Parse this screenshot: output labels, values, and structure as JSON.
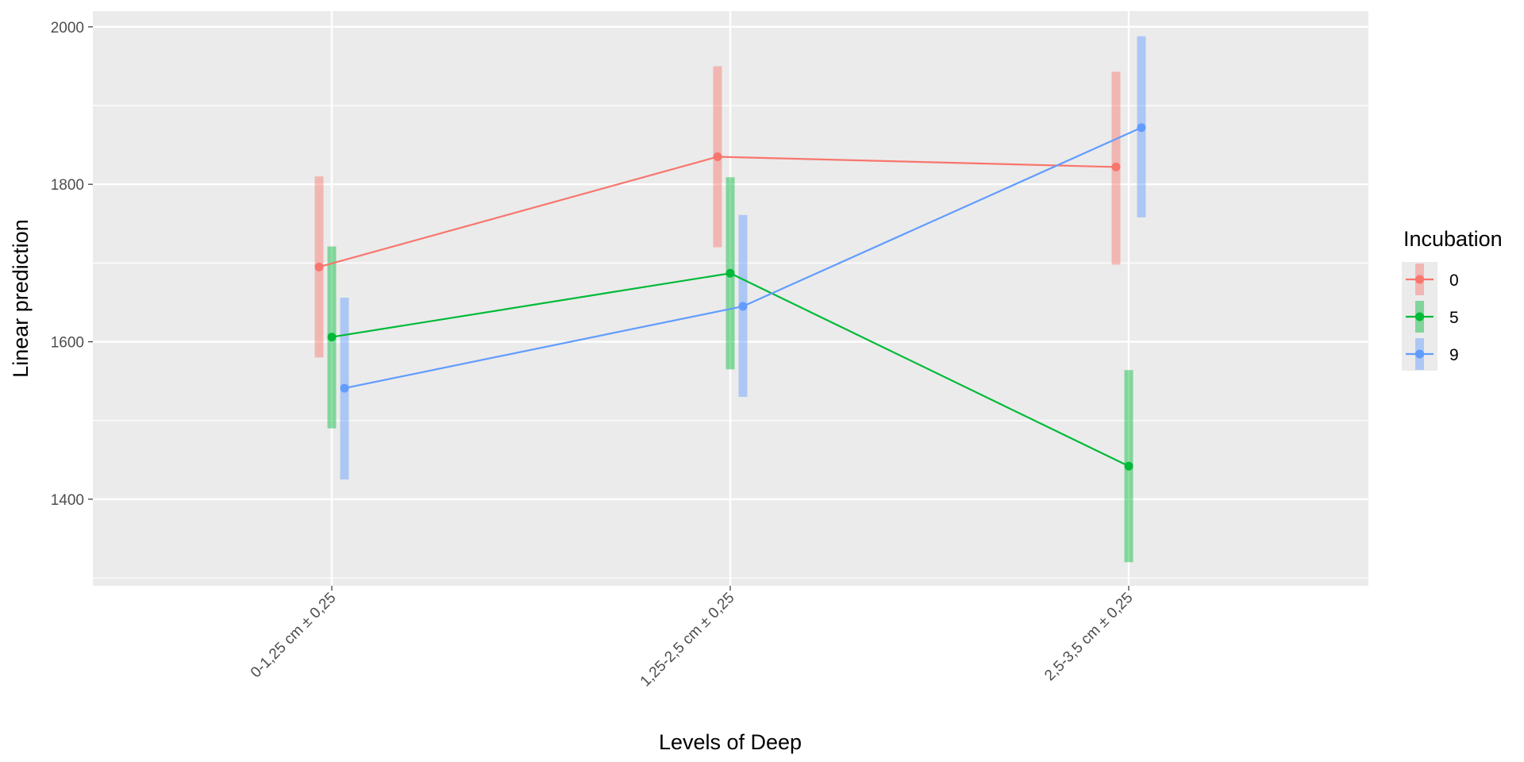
{
  "chart_data": {
    "type": "line",
    "xlabel": "Levels of Deep",
    "ylabel": "Linear prediction",
    "categories": [
      "0-1,25 cm ± 0,25",
      "1,25-2,5 cm ± 0,25",
      "2,5-3,5 cm ± 0,25"
    ],
    "ylim": [
      1290,
      2020
    ],
    "yticks": [
      1400,
      1600,
      1800,
      2000
    ],
    "grid": true,
    "legend": {
      "title": "Incubation",
      "position": "right"
    },
    "series": [
      {
        "name": "0",
        "color": "#F8766D",
        "values": [
          1695,
          1835,
          1822
        ],
        "lower": [
          1580,
          1720,
          1698
        ],
        "upper": [
          1810,
          1950,
          1943
        ]
      },
      {
        "name": "5",
        "color": "#00BA38",
        "values": [
          1606,
          1687,
          1442
        ],
        "lower": [
          1490,
          1565,
          1320
        ],
        "upper": [
          1721,
          1809,
          1564
        ]
      },
      {
        "name": "9",
        "color": "#619CFF",
        "values": [
          1541,
          1645,
          1872
        ],
        "lower": [
          1425,
          1530,
          1758
        ],
        "upper": [
          1656,
          1761,
          1988
        ]
      }
    ]
  }
}
